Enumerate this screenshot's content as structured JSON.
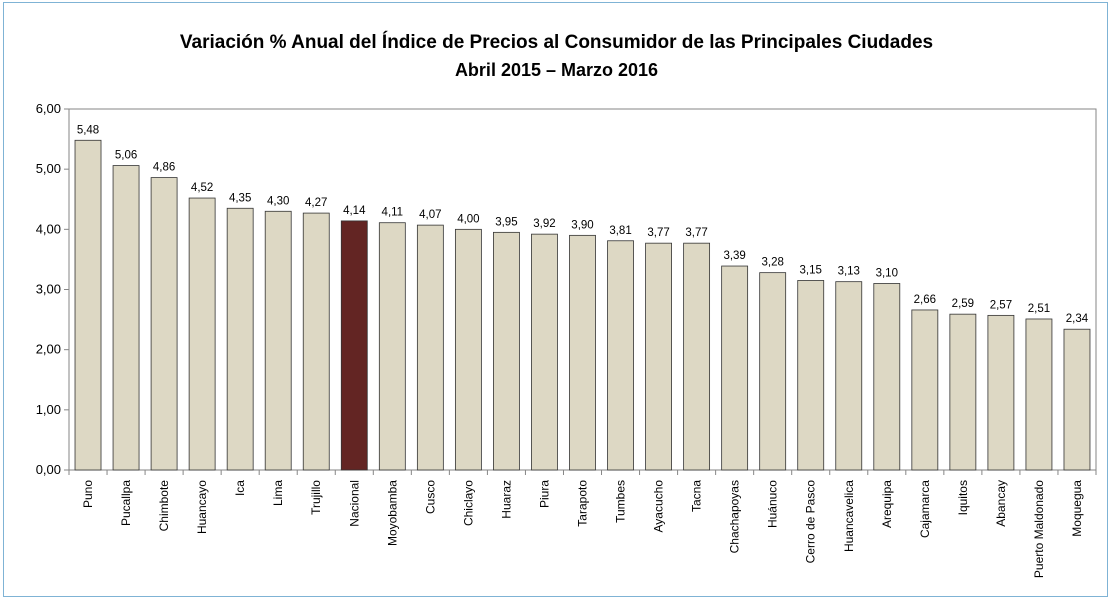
{
  "chart_data": {
    "type": "bar",
    "title": "Variación % Anual del Índice de Precios al Consumidor de las Principales Ciudades",
    "subtitle": "Abril 2015 – Marzo 2016",
    "xlabel": "",
    "ylabel": "",
    "ylim": [
      0,
      6
    ],
    "yticks": [
      "0,00",
      "1,00",
      "2,00",
      "3,00",
      "4,00",
      "5,00",
      "6,00"
    ],
    "grid": false,
    "legend": "none",
    "bar_color": "#ddd8c4",
    "highlight_color": "#632523",
    "highlight_category": "Nacional",
    "categories": [
      "Puno",
      "Pucallpa",
      "Chimbote",
      "Huancayo",
      "Ica",
      "Lima",
      "Trujillo",
      "Nacional",
      "Moyobamba",
      "Cusco",
      "Chiclayo",
      "Huaraz",
      "Piura",
      "Tarapoto",
      "Tumbes",
      "Ayacucho",
      "Tacna",
      "Chachapoyas",
      "Huánuco",
      "Cerro de Pasco",
      "Huancavelica",
      "Arequipa",
      "Cajamarca",
      "Iquitos",
      "Abancay",
      "Puerto Maldonado",
      "Moquegua"
    ],
    "values": [
      5.48,
      5.06,
      4.86,
      4.52,
      4.35,
      4.3,
      4.27,
      4.14,
      4.11,
      4.07,
      4.0,
      3.95,
      3.92,
      3.9,
      3.81,
      3.77,
      3.77,
      3.39,
      3.28,
      3.15,
      3.13,
      3.1,
      2.66,
      2.59,
      2.57,
      2.51,
      2.34
    ],
    "data_labels": [
      "5,48",
      "5,06",
      "4,86",
      "4,52",
      "4,35",
      "4,30",
      "4,27",
      "4,14",
      "4,11",
      "4,07",
      "4,00",
      "3,95",
      "3,92",
      "3,90",
      "3,81",
      "3,77",
      "3,77",
      "3,39",
      "3,28",
      "3,15",
      "3,13",
      "3,10",
      "2,66",
      "2,59",
      "2,57",
      "2,51",
      "2,34"
    ]
  }
}
